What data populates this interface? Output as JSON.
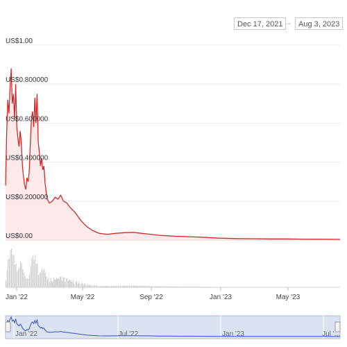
{
  "range": {
    "start": "Dec 17, 2021",
    "end": "Aug 3, 2023",
    "arrow": "→"
  },
  "chart_data": {
    "type": "line",
    "title": "",
    "xlabel": "",
    "ylabel": "",
    "y_ticks": [
      "US$0.00",
      "US$0.200000",
      "US$0.400000",
      "US$0.600000",
      "US$0.800000",
      "US$1.00"
    ],
    "ylim": [
      0,
      1.0
    ],
    "x_ticks": [
      "Jan '22",
      "May '22",
      "Sep '22",
      "Jan '23",
      "May '23"
    ],
    "navigator_ticks": [
      "Jan '22",
      "Jul '22",
      "Jan '23",
      "Jul '..."
    ],
    "grid": true,
    "legend": "none",
    "colors": {
      "line": "#d62728",
      "fill": "#fbe3e3",
      "volume": "#c8c8c8",
      "navigator_fill": "#dbe3f2",
      "navigator_line": "#2f52c9"
    },
    "series": [
      {
        "x": [
          "2021-12-17",
          "2021-12-19",
          "2021-12-21",
          "2021-12-23",
          "2021-12-25",
          "2021-12-27",
          "2021-12-29",
          "2021-12-31",
          "2022-01-02",
          "2022-01-04",
          "2022-01-06",
          "2022-01-08",
          "2022-01-10",
          "2022-01-12",
          "2022-01-14",
          "2022-01-16",
          "2022-01-18",
          "2022-01-20",
          "2022-01-22",
          "2022-01-24",
          "2022-01-26",
          "2022-01-28",
          "2022-01-30",
          "2022-02-01",
          "2022-02-03",
          "2022-02-05",
          "2022-02-07",
          "2022-02-09",
          "2022-02-11",
          "2022-02-13",
          "2022-02-15",
          "2022-02-17",
          "2022-02-19",
          "2022-02-21",
          "2022-02-23",
          "2022-02-25",
          "2022-02-27",
          "2022-03-01",
          "2022-03-05",
          "2022-03-10",
          "2022-03-15",
          "2022-03-20",
          "2022-03-25",
          "2022-03-30",
          "2022-04-05",
          "2022-04-10",
          "2022-04-20",
          "2022-04-30",
          "2022-05-10",
          "2022-05-20",
          "2022-06-01",
          "2022-06-15",
          "2022-07-01",
          "2022-07-15",
          "2022-08-01",
          "2022-08-15",
          "2022-09-01",
          "2022-09-15",
          "2022-10-01",
          "2022-10-15",
          "2022-11-01",
          "2022-12-01",
          "2023-01-01",
          "2023-02-01",
          "2023-03-01",
          "2023-04-01",
          "2023-05-01",
          "2023-06-01",
          "2023-07-01",
          "2023-08-03"
        ],
        "values": [
          0.28,
          0.55,
          0.72,
          0.65,
          0.78,
          0.88,
          0.7,
          0.75,
          0.62,
          0.8,
          0.58,
          0.52,
          0.48,
          0.56,
          0.5,
          0.38,
          0.32,
          0.28,
          0.26,
          0.32,
          0.3,
          0.35,
          0.5,
          0.62,
          0.66,
          0.58,
          0.73,
          0.6,
          0.75,
          0.5,
          0.45,
          0.38,
          0.42,
          0.36,
          0.38,
          0.3,
          0.25,
          0.21,
          0.19,
          0.2,
          0.22,
          0.21,
          0.23,
          0.2,
          0.19,
          0.17,
          0.14,
          0.1,
          0.07,
          0.05,
          0.035,
          0.03,
          0.035,
          0.038,
          0.04,
          0.035,
          0.03,
          0.025,
          0.022,
          0.02,
          0.018,
          0.015,
          0.01,
          0.008,
          0.007,
          0.006,
          0.006,
          0.005,
          0.005,
          0.004
        ]
      }
    ]
  }
}
